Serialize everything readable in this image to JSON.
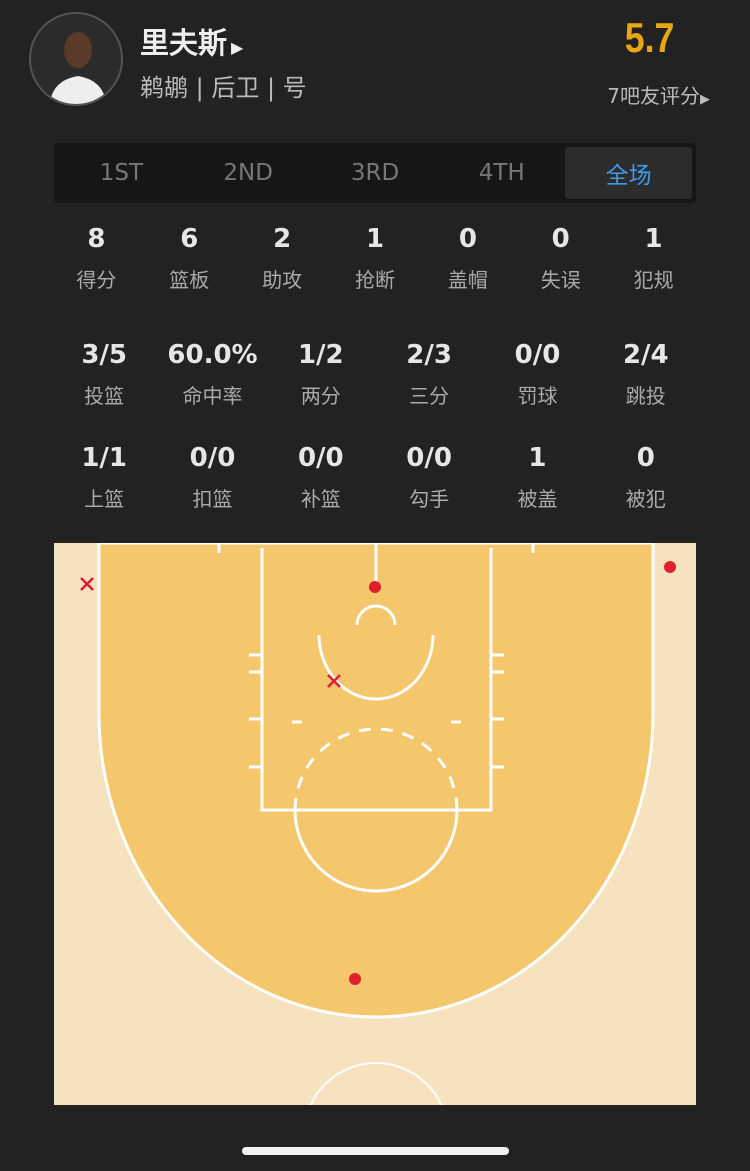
{
  "player": {
    "name": "里夫斯",
    "subtitle": "鹈鹕 | 后卫 | 号",
    "rating": "5.7",
    "rating_count_label": "7吧友评分"
  },
  "tabs": [
    {
      "label": "1ST"
    },
    {
      "label": "2ND"
    },
    {
      "label": "3RD"
    },
    {
      "label": "4TH"
    },
    {
      "label": "全场",
      "active": true
    }
  ],
  "basic_stats": [
    {
      "value": "8",
      "label": "得分"
    },
    {
      "value": "6",
      "label": "篮板"
    },
    {
      "value": "2",
      "label": "助攻"
    },
    {
      "value": "1",
      "label": "抢断"
    },
    {
      "value": "0",
      "label": "盖帽"
    },
    {
      "value": "0",
      "label": "失误"
    },
    {
      "value": "1",
      "label": "犯规"
    }
  ],
  "shooting_stats": [
    {
      "value": "3/5",
      "label": "投篮"
    },
    {
      "value": "60.0%",
      "label": "命中率"
    },
    {
      "value": "1/2",
      "label": "两分"
    },
    {
      "value": "2/3",
      "label": "三分"
    },
    {
      "value": "0/0",
      "label": "罚球"
    },
    {
      "value": "2/4",
      "label": "跳投"
    }
  ],
  "shot_type_stats": [
    {
      "value": "1/1",
      "label": "上篮"
    },
    {
      "value": "0/0",
      "label": "扣篮"
    },
    {
      "value": "0/0",
      "label": "补篮"
    },
    {
      "value": "0/0",
      "label": "勾手"
    },
    {
      "value": "1",
      "label": "被盖"
    },
    {
      "value": "0",
      "label": "被犯"
    }
  ],
  "shot_chart": {
    "colors": {
      "made": "#e0202e",
      "missed": "#e0202e",
      "paint": "#f5c76d",
      "floor": "#f7e2bf"
    },
    "shots": [
      {
        "result": "missed",
        "zone": "left corner three"
      },
      {
        "result": "made",
        "zone": "right corner three"
      },
      {
        "result": "made",
        "zone": "at rim"
      },
      {
        "result": "missed",
        "zone": "paint"
      },
      {
        "result": "made",
        "zone": "top of key three"
      }
    ]
  }
}
